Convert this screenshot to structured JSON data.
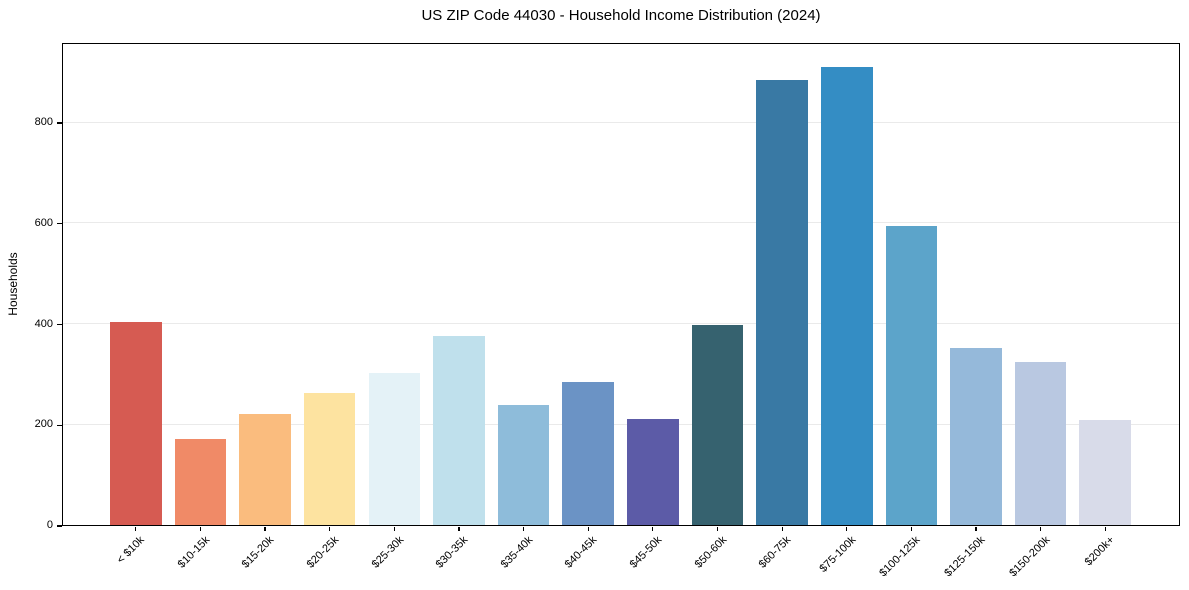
{
  "chart_data": {
    "type": "bar",
    "title": "US ZIP Code 44030 - Household Income Distribution (2024)",
    "xlabel": "",
    "ylabel": "Households",
    "categories": [
      "< $10k",
      "$10-15k",
      "$15-20k",
      "$20-25k",
      "$25-30k",
      "$30-35k",
      "$35-40k",
      "$40-45k",
      "$45-50k",
      "$50-60k",
      "$60-75k",
      "$75-100k",
      "$100-125k",
      "$125-150k",
      "$150-200k",
      "$200k+"
    ],
    "values": [
      404,
      171,
      220,
      262,
      302,
      375,
      238,
      284,
      210,
      397,
      883,
      910,
      594,
      351,
      324,
      209
    ],
    "bar_colors": [
      "#d65b52",
      "#f08a67",
      "#fabc7e",
      "#fde3a0",
      "#e4f2f7",
      "#bfe0ec",
      "#8ebcda",
      "#6b93c5",
      "#5c5ba7",
      "#36626f",
      "#3979a4",
      "#348dc4",
      "#5ca4ca",
      "#95b9da",
      "#b9c8e1",
      "#d8dbe9"
    ],
    "yticks": [
      0,
      200,
      400,
      600,
      800
    ],
    "ylim": [
      0,
      959
    ],
    "grid": "horizontal",
    "gridline_color": "#eaeaea",
    "legend_position": "none",
    "background_color": "#ffffff",
    "spine_color": "#000000"
  }
}
